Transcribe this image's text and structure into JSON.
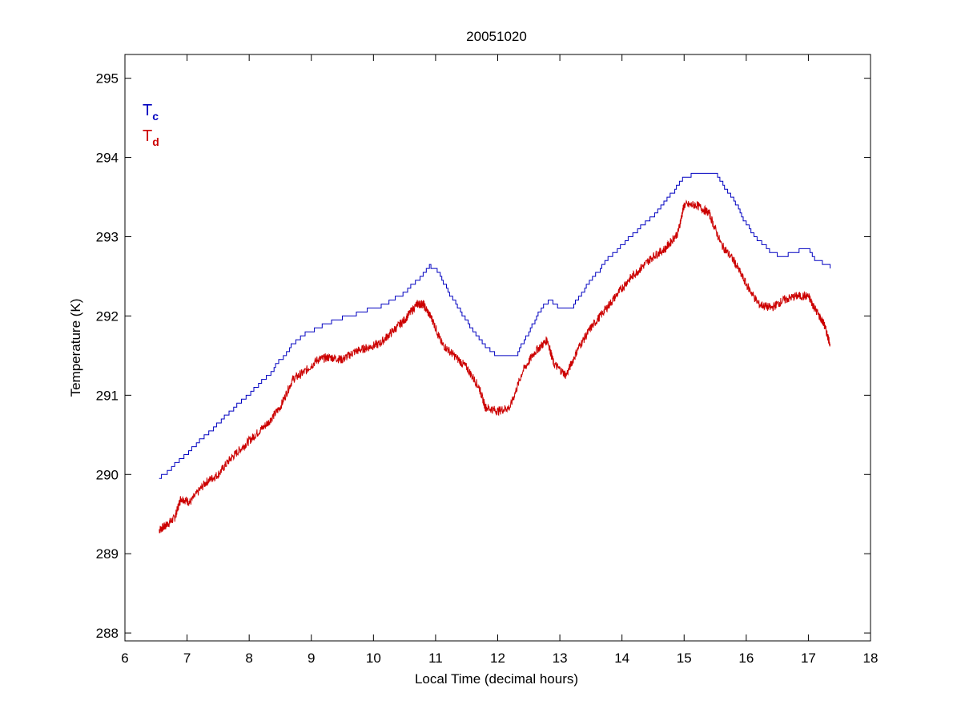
{
  "chart_data": {
    "type": "line",
    "title": "20051020",
    "xlabel": "Local Time (decimal hours)",
    "ylabel": "Temperature (K)",
    "xlim": [
      6,
      18
    ],
    "ylim": [
      287.9,
      295.3
    ],
    "xticks": [
      6,
      7,
      8,
      9,
      10,
      11,
      12,
      13,
      14,
      15,
      16,
      17,
      18
    ],
    "yticks": [
      288,
      289,
      290,
      291,
      292,
      293,
      294,
      295
    ],
    "grid": false,
    "legend_position": "top-left",
    "series": [
      {
        "name": "T",
        "subscript": "c",
        "color": "#0000c0",
        "style": "stepped",
        "x": [
          6.55,
          6.7,
          6.9,
          7.1,
          7.3,
          7.5,
          7.7,
          7.9,
          8.1,
          8.3,
          8.5,
          8.7,
          8.9,
          9.1,
          9.3,
          9.5,
          9.7,
          9.9,
          10.1,
          10.3,
          10.5,
          10.7,
          10.9,
          11.0,
          11.2,
          11.4,
          11.6,
          11.8,
          12.0,
          12.3,
          12.5,
          12.7,
          12.85,
          13.0,
          13.2,
          13.4,
          13.6,
          13.8,
          14.0,
          14.2,
          14.4,
          14.6,
          14.8,
          15.0,
          15.3,
          15.5,
          15.6,
          15.8,
          16.0,
          16.2,
          16.4,
          16.6,
          16.8,
          17.0,
          17.1,
          17.35
        ],
        "y": [
          289.95,
          290.05,
          290.2,
          290.35,
          290.5,
          290.65,
          290.8,
          290.95,
          291.1,
          291.25,
          291.45,
          291.65,
          291.78,
          291.85,
          291.92,
          291.98,
          292.02,
          292.08,
          292.12,
          292.2,
          292.3,
          292.45,
          292.63,
          292.6,
          292.3,
          292.05,
          291.8,
          291.6,
          291.5,
          291.52,
          291.8,
          292.1,
          292.2,
          292.08,
          292.12,
          292.35,
          292.55,
          292.75,
          292.9,
          293.05,
          293.2,
          293.35,
          293.55,
          293.75,
          293.82,
          293.82,
          293.68,
          293.45,
          293.15,
          292.95,
          292.8,
          292.75,
          292.82,
          292.85,
          292.72,
          292.62
        ]
      },
      {
        "name": "T",
        "subscript": "d",
        "color": "#cc0000",
        "style": "noisy",
        "x": [
          6.55,
          6.65,
          6.8,
          6.9,
          7.05,
          7.3,
          7.5,
          7.7,
          7.9,
          8.1,
          8.3,
          8.5,
          8.7,
          8.9,
          9.1,
          9.3,
          9.5,
          9.7,
          9.9,
          10.1,
          10.3,
          10.5,
          10.7,
          10.8,
          10.95,
          11.1,
          11.3,
          11.5,
          11.7,
          11.8,
          12.0,
          12.2,
          12.4,
          12.6,
          12.8,
          12.9,
          13.1,
          13.3,
          13.5,
          13.7,
          13.9,
          14.1,
          14.3,
          14.5,
          14.7,
          14.9,
          15.0,
          15.2,
          15.4,
          15.6,
          15.8,
          16.0,
          16.2,
          16.4,
          16.6,
          16.8,
          17.0,
          17.1,
          17.25,
          17.35
        ],
        "y": [
          289.3,
          289.35,
          289.45,
          289.7,
          289.65,
          289.9,
          290.0,
          290.2,
          290.35,
          290.5,
          290.65,
          290.85,
          291.2,
          291.3,
          291.45,
          291.48,
          291.45,
          291.55,
          291.6,
          291.65,
          291.8,
          291.95,
          292.15,
          292.15,
          291.95,
          291.65,
          291.5,
          291.35,
          291.1,
          290.85,
          290.8,
          290.85,
          291.3,
          291.55,
          291.7,
          291.4,
          291.25,
          291.6,
          291.85,
          292.05,
          292.25,
          292.45,
          292.6,
          292.75,
          292.85,
          293.05,
          293.4,
          293.4,
          293.3,
          292.9,
          292.7,
          292.4,
          292.15,
          292.1,
          292.2,
          292.25,
          292.25,
          292.1,
          291.9,
          291.65
        ]
      }
    ]
  }
}
